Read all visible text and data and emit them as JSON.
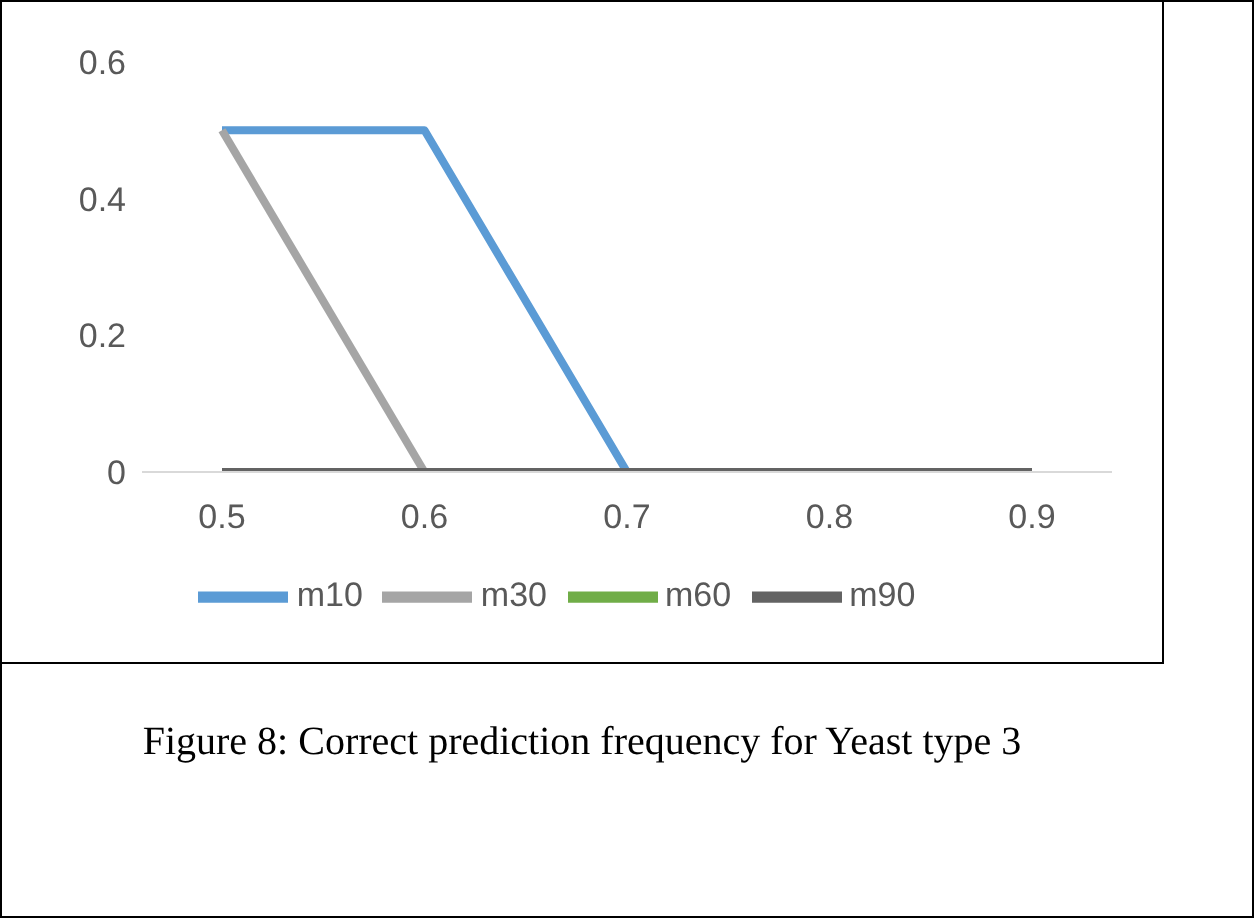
{
  "chart_data": {
    "type": "line",
    "categories": [
      "0.5",
      "0.6",
      "0.7",
      "0.8",
      "0.9"
    ],
    "series": [
      {
        "name": "m10",
        "color": "#5b9bd5",
        "values": [
          0.5,
          0.5,
          0,
          null,
          null
        ]
      },
      {
        "name": "m30",
        "color": "#a5a5a5",
        "values": [
          0.5,
          0,
          null,
          null,
          null
        ]
      },
      {
        "name": "m60",
        "color": "#70ad47",
        "values": [
          null,
          null,
          null,
          null,
          null
        ]
      },
      {
        "name": "m90",
        "color": "#636363",
        "values": [
          0,
          0,
          0,
          0,
          0
        ]
      }
    ],
    "ylim": [
      0,
      0.6
    ],
    "yticks": [
      0,
      0.2,
      0.4,
      0.6
    ],
    "grid": false,
    "legend": "bottom",
    "marker": "none",
    "line_style": "solid",
    "annotations": [
      "Figure 8: Correct prediction frequency for Yeast type 3"
    ]
  }
}
